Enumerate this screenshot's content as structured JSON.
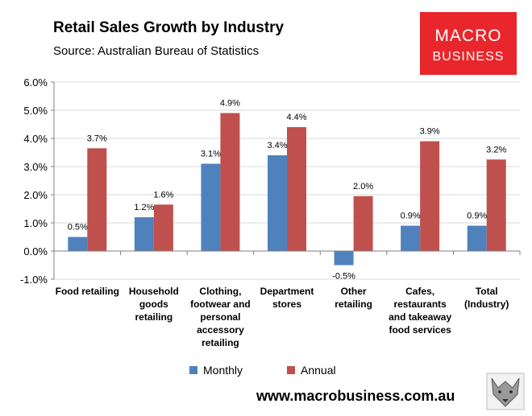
{
  "header": {
    "title": "Retail Sales Growth by Industry",
    "subtitle": "Source: Australian Bureau of Statistics"
  },
  "logo": {
    "line1": "MACRO",
    "line2": "BUSINESS",
    "color": "#e8262b"
  },
  "footer": {
    "url": "www.macrobusiness.com.au"
  },
  "colors": {
    "monthly": "#4f81bd",
    "annual": "#c0504d",
    "grid": "#d9d9d9",
    "axis": "#7f7f7f"
  },
  "chart_data": {
    "type": "bar",
    "title": "Retail Sales Growth by Industry",
    "categories": [
      [
        "Food retailing"
      ],
      [
        "Household",
        "goods",
        "retailing"
      ],
      [
        "Clothing,",
        "footwear and",
        "personal",
        "accessory",
        "retailing"
      ],
      [
        "Department",
        "stores"
      ],
      [
        "Other",
        "retailing"
      ],
      [
        "Cafes,",
        "restaurants",
        "and takeaway",
        "food services"
      ],
      [
        "Total",
        "(Industry)"
      ]
    ],
    "series": [
      {
        "name": "Monthly",
        "values": [
          0.5,
          1.2,
          3.1,
          3.4,
          -0.5,
          0.9,
          0.9
        ],
        "labels": [
          "0.5%",
          "1.2%",
          "3.1%",
          "3.4%",
          "-0.5%",
          "0.9%",
          "0.9%"
        ]
      },
      {
        "name": "Annual",
        "values": [
          3.65,
          1.65,
          4.9,
          4.4,
          1.95,
          3.9,
          3.25
        ],
        "labels": [
          "3.7%",
          "1.6%",
          "4.9%",
          "4.4%",
          "2.0%",
          "3.9%",
          "3.2%"
        ]
      }
    ],
    "ylim": [
      -1.0,
      6.0
    ],
    "yticks": [
      "-1.0%",
      "0.0%",
      "1.0%",
      "2.0%",
      "3.0%",
      "4.0%",
      "5.0%",
      "6.0%"
    ],
    "grid": true,
    "legend": "bottom"
  }
}
